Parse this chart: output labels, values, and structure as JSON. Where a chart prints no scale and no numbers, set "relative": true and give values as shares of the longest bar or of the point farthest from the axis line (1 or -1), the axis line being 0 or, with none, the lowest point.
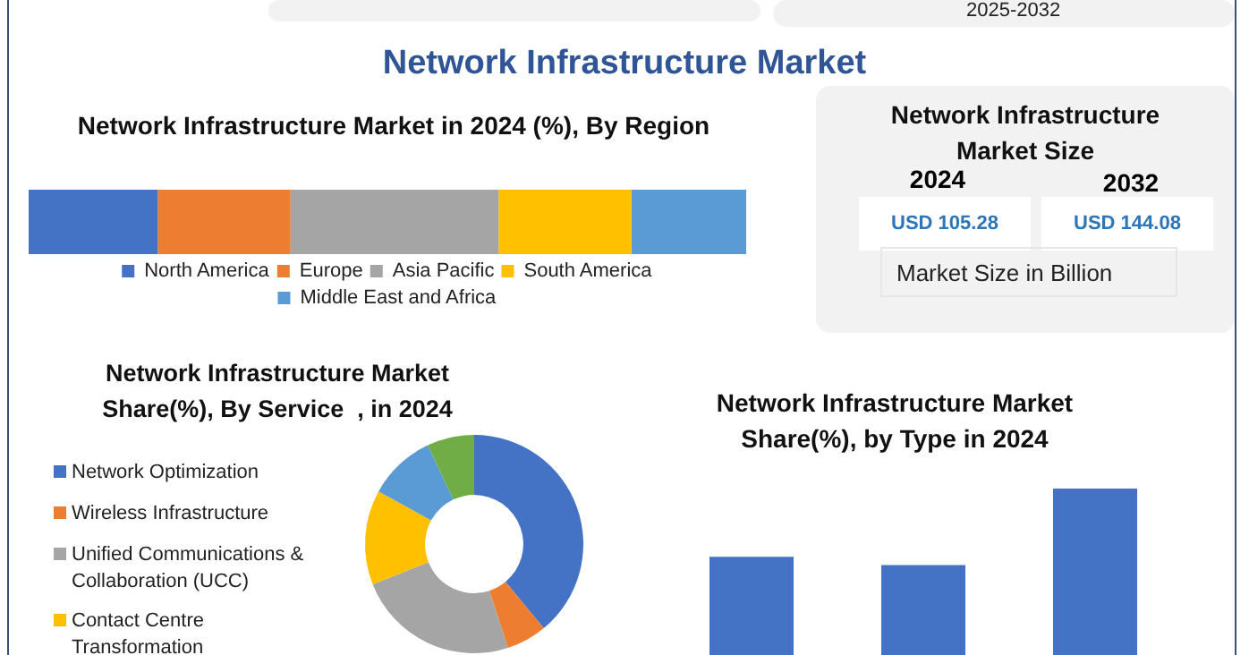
{
  "chart_data": [
    {
      "type": "other",
      "title": "Network Infrastructure Market",
      "annotations": [
        "2025-2032"
      ]
    },
    {
      "type": "bar",
      "orientation": "horizontal",
      "stacked": true,
      "relative": true,
      "title": "Network Infrastructure Market in 2024 (%), By Region",
      "categories": [
        null
      ],
      "legend": "bottom",
      "series": [
        {
          "name": "North America",
          "color": "#4472c4",
          "values": [
            0.18
          ]
        },
        {
          "name": "Europe",
          "color": "#ed7d31",
          "values": [
            0.185
          ]
        },
        {
          "name": "Asia Pacific",
          "color": "#a5a5a5",
          "values": [
            0.29
          ]
        },
        {
          "name": "South America",
          "color": "#ffc000",
          "values": [
            0.185
          ]
        },
        {
          "name": "Middle East and Africa",
          "color": "#5b9bd5",
          "values": [
            0.16
          ]
        }
      ]
    },
    {
      "type": "other",
      "title": "Network Infrastructure Market Size",
      "annotations": [
        "2024",
        "2032",
        "USD 105.28",
        "USD 144.08",
        "Market Size in Billion"
      ]
    },
    {
      "type": "donut",
      "title": "Network Infrastructure Market Share(%), By Service  , in 2024",
      "legend": "left",
      "categories": [
        "Network Optimization",
        "Wireless Infrastructure",
        "Unified Communications & Collaboration (UCC)",
        "Contact Centre Transformation",
        null,
        null
      ],
      "values": [
        39,
        6,
        24,
        14,
        10,
        7
      ],
      "colors": [
        "#4472c4",
        "#ed7d31",
        "#a5a5a5",
        "#ffc000",
        "#5b9bd5",
        "#70ad47"
      ]
    },
    {
      "type": "bar",
      "relative": true,
      "title": "Network Infrastructure Market Share(%), by Type in 2024",
      "categories": [
        null,
        null,
        null
      ],
      "values": [
        0.59,
        0.54,
        1
      ],
      "color": "#4472c4"
    }
  ]
}
